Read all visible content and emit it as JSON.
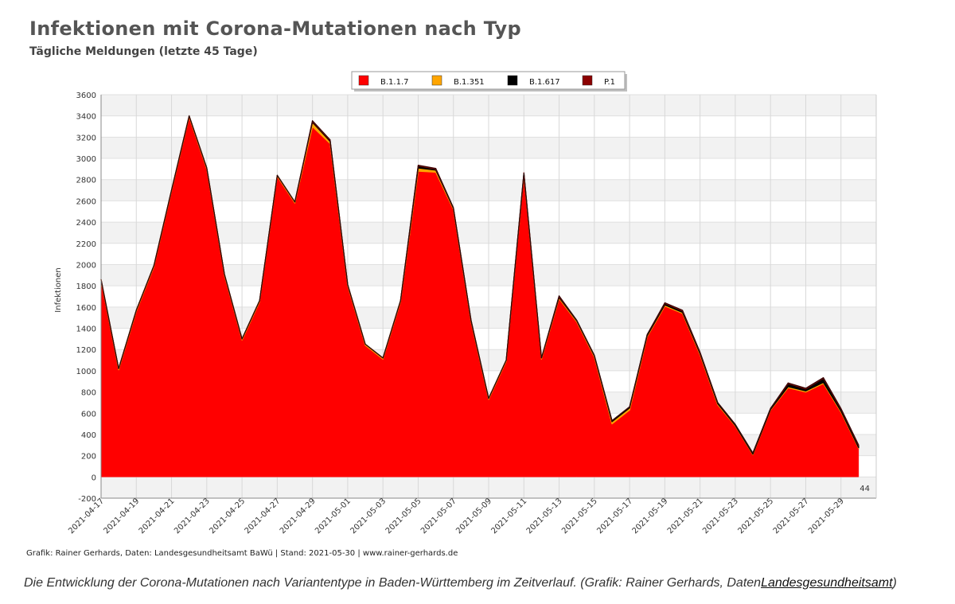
{
  "header": {
    "title": "Infektionen mit Corona-Mutationen nach Typ",
    "subtitle": "Tägliche Meldungen (letzte 45 Tage)"
  },
  "footer": {
    "credit": "Grafik: Rainer Gerhards, Daten: Landesgesundheitsamt BaWü | Stand: 2021-05-30 | www.rainer-gerhards.de",
    "caption_text": "Die Entwicklung der Corona-Mutationen nach Variantentype in Baden-Württemberg im Zeitverlauf. (Grafik: Rainer Gerhards, Daten",
    "caption_link": "Landesgesundheitsamt",
    "caption_end": ")"
  },
  "chart_data": {
    "type": "area",
    "stacked": true,
    "title": "Infektionen mit Corona-Mutationen nach Typ",
    "subtitle": "Tägliche Meldungen (letzte 45 Tage)",
    "ylabel": "Infektionen",
    "xlabel": "",
    "ylim": [
      -200,
      3600
    ],
    "yticks": [
      -200,
      0,
      200,
      400,
      600,
      800,
      1000,
      1200,
      1400,
      1600,
      1800,
      2000,
      2200,
      2400,
      2600,
      2800,
      3000,
      3200,
      3400,
      3600
    ],
    "x_tick_labels": [
      "2021-04-17",
      "2021-04-19",
      "2021-04-21",
      "2021-04-23",
      "2021-04-25",
      "2021-04-27",
      "2021-04-29",
      "2021-05-01",
      "2021-05-03",
      "2021-05-05",
      "2021-05-07",
      "2021-05-09",
      "2021-05-11",
      "2021-05-13",
      "2021-05-15",
      "2021-05-17",
      "2021-05-19",
      "2021-05-21",
      "2021-05-23",
      "2021-05-25",
      "2021-05-27",
      "2021-05-29",
      "44"
    ],
    "grid": true,
    "legend_position": "top-center",
    "x": [
      "2021-04-17",
      "2021-04-18",
      "2021-04-19",
      "2021-04-20",
      "2021-04-21",
      "2021-04-22",
      "2021-04-23",
      "2021-04-24",
      "2021-04-25",
      "2021-04-26",
      "2021-04-27",
      "2021-04-28",
      "2021-04-29",
      "2021-04-30",
      "2021-05-01",
      "2021-05-02",
      "2021-05-03",
      "2021-05-04",
      "2021-05-05",
      "2021-05-06",
      "2021-05-07",
      "2021-05-08",
      "2021-05-09",
      "2021-05-10",
      "2021-05-11",
      "2021-05-12",
      "2021-05-13",
      "2021-05-14",
      "2021-05-15",
      "2021-05-16",
      "2021-05-17",
      "2021-05-18",
      "2021-05-19",
      "2021-05-20",
      "2021-05-21",
      "2021-05-22",
      "2021-05-23",
      "2021-05-24",
      "2021-05-25",
      "2021-05-26",
      "2021-05-27",
      "2021-05-28",
      "2021-05-29",
      "2021-05-30"
    ],
    "series": [
      {
        "name": "B.1.1.7",
        "color": "#ff0000",
        "values": [
          1850,
          1010,
          1560,
          1980,
          2690,
          3390,
          2900,
          1900,
          1290,
          1650,
          2830,
          2580,
          3300,
          3140,
          1800,
          1240,
          1110,
          1650,
          2880,
          2870,
          2520,
          1460,
          730,
          1090,
          2840,
          1110,
          1680,
          1460,
          1130,
          500,
          630,
          1320,
          1610,
          1540,
          1150,
          680,
          480,
          210,
          630,
          840,
          800,
          880,
          610,
          270
        ]
      },
      {
        "name": "B.1.351",
        "color": "#ffa500",
        "values": [
          10,
          10,
          10,
          10,
          10,
          10,
          10,
          10,
          10,
          10,
          10,
          10,
          40,
          20,
          10,
          10,
          10,
          10,
          30,
          20,
          10,
          10,
          10,
          10,
          10,
          10,
          10,
          10,
          10,
          20,
          20,
          10,
          10,
          10,
          10,
          10,
          5,
          5,
          5,
          10,
          10,
          10,
          10,
          5
        ]
      },
      {
        "name": "B.1.617",
        "color": "#000000",
        "values": [
          0,
          0,
          0,
          0,
          0,
          0,
          0,
          0,
          0,
          0,
          0,
          0,
          10,
          10,
          0,
          0,
          0,
          0,
          20,
          10,
          5,
          5,
          0,
          0,
          10,
          0,
          10,
          5,
          5,
          10,
          10,
          10,
          15,
          15,
          10,
          10,
          10,
          10,
          10,
          30,
          20,
          40,
          20,
          20
        ]
      },
      {
        "name": "P.1",
        "color": "#8b0000",
        "values": [
          0,
          0,
          0,
          0,
          0,
          0,
          0,
          0,
          0,
          0,
          0,
          0,
          5,
          5,
          0,
          0,
          0,
          0,
          5,
          5,
          0,
          0,
          0,
          0,
          5,
          0,
          5,
          0,
          0,
          0,
          0,
          0,
          5,
          5,
          5,
          0,
          0,
          0,
          0,
          5,
          5,
          5,
          5,
          5
        ]
      }
    ]
  }
}
